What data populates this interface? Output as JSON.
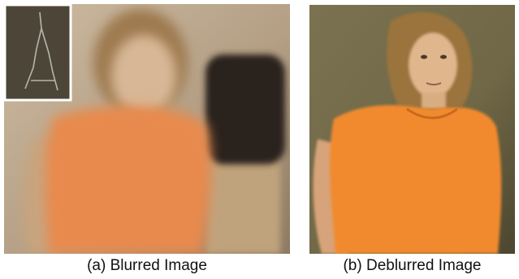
{
  "figure": {
    "panels": [
      {
        "caption": "(a) Blurred Image"
      },
      {
        "caption": "(b) Deblurred Image"
      }
    ]
  },
  "colors": {
    "blurred_background": "#b49f85",
    "blurred_shirt": "#e88a4e",
    "deblurred_background": "#6f6745",
    "deblurred_shirt": "#f18a2e",
    "inset_border": "#ffffff"
  }
}
